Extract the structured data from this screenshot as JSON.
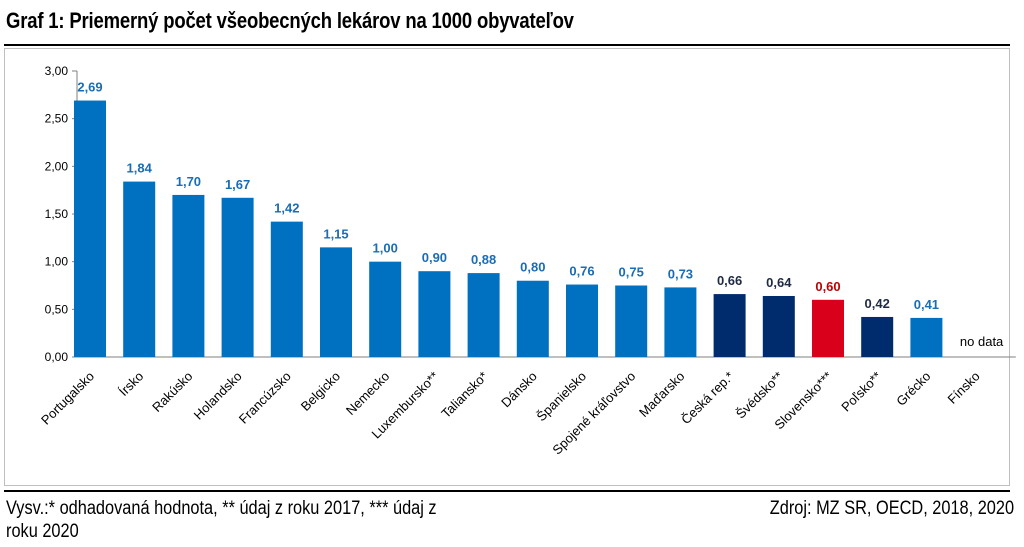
{
  "title": "Graf 1: Priemerný počet všeobecných lekárov na 1000 obyvateľov",
  "footnote": "Vysv.:* odhadovaná hodnota, ** údaj z roku 2017, *** údaj z roku 2020",
  "source": "Zdroj: MZ SR, OECD, 2018, 2020",
  "colors": {
    "light_blue": "#0070c0",
    "dark_blue": "#002c6e",
    "red": "#d9001b",
    "label_blue": "#1a6db5",
    "label_dark": "#1f2a44",
    "label_red": "#c00000"
  },
  "chart_data": {
    "type": "bar",
    "title": "Graf 1: Priemerný počet všeobecných lekárov na 1000 obyvateľov",
    "xlabel": "",
    "ylabel": "",
    "ylim": [
      0,
      3
    ],
    "yticks": [
      0,
      0.5,
      1.0,
      1.5,
      2.0,
      2.5,
      3.0
    ],
    "ytick_labels": [
      "0,00",
      "0,50",
      "1,00",
      "1,50",
      "2,00",
      "2,50",
      "3,00"
    ],
    "grid": false,
    "categories": [
      "Portugalsko",
      "Írsko",
      "Rakúsko",
      "Holandsko",
      "Francúzsko",
      "Belgicko",
      "Nemecko",
      "Luxembursko**",
      "Taliansko*",
      "Dánsko",
      "Španielsko",
      "Spojené kráľovstvo",
      "Maďarsko",
      "Česká rep.*",
      "Švédsko**",
      "Slovensko***",
      "Poľsko**",
      "Grécko",
      "Fínsko"
    ],
    "values": [
      2.69,
      1.84,
      1.7,
      1.67,
      1.42,
      1.15,
      1.0,
      0.9,
      0.88,
      0.8,
      0.76,
      0.75,
      0.73,
      0.66,
      0.64,
      0.6,
      0.42,
      0.41,
      null
    ],
    "value_labels": [
      "2,69",
      "1,84",
      "1,70",
      "1,67",
      "1,42",
      "1,15",
      "1,00",
      "0,90",
      "0,88",
      "0,80",
      "0,76",
      "0,75",
      "0,73",
      "0,66",
      "0,64",
      "0,60",
      "0,42",
      "0,41",
      "no data"
    ],
    "bar_colors": [
      "light_blue",
      "light_blue",
      "light_blue",
      "light_blue",
      "light_blue",
      "light_blue",
      "light_blue",
      "light_blue",
      "light_blue",
      "light_blue",
      "light_blue",
      "light_blue",
      "light_blue",
      "dark_blue",
      "dark_blue",
      "red",
      "dark_blue",
      "light_blue",
      null
    ]
  }
}
